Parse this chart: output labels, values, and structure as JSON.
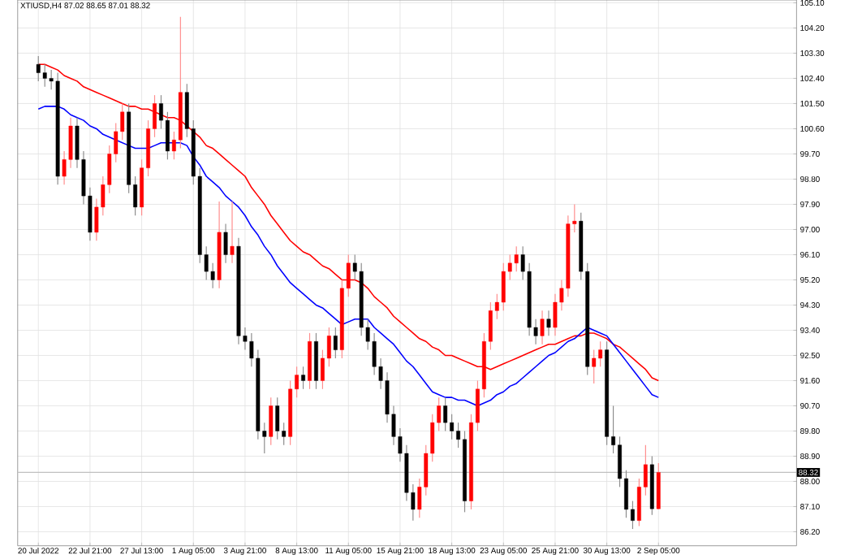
{
  "chart_data": {
    "type": "candlestick",
    "title": "XTIUSD,H4  87.02 88.65 87.01 88.32",
    "categories": [
      "20 Jul 2022",
      null,
      null,
      null,
      null,
      null,
      null,
      null,
      "22 Jul 21:00",
      null,
      null,
      null,
      null,
      null,
      null,
      null,
      "27 Jul 13:00",
      null,
      null,
      null,
      null,
      null,
      null,
      null,
      "1 Aug 05:00",
      null,
      null,
      null,
      null,
      null,
      null,
      null,
      "3 Aug 21:00",
      null,
      null,
      null,
      null,
      null,
      null,
      null,
      "8 Aug 13:00",
      null,
      null,
      null,
      null,
      null,
      null,
      null,
      "11 Aug 05:00",
      null,
      null,
      null,
      null,
      null,
      null,
      null,
      "15 Aug 21:00",
      null,
      null,
      null,
      null,
      null,
      null,
      null,
      "18 Aug 13:00",
      null,
      null,
      null,
      null,
      null,
      null,
      null,
      "23 Aug 05:00",
      null,
      null,
      null,
      null,
      null,
      null,
      null,
      "25 Aug 21:00",
      null,
      null,
      null,
      null,
      null,
      null,
      null,
      "30 Aug 13:00",
      null,
      null,
      null,
      null,
      null,
      null,
      null,
      "2 Sep 05:00"
    ],
    "ohlc": [
      [
        102.9,
        103.2,
        102.3,
        102.6
      ],
      [
        102.6,
        102.9,
        102.1,
        102.4
      ],
      [
        102.4,
        102.7,
        102.0,
        102.3
      ],
      [
        102.3,
        102.6,
        98.6,
        98.9
      ],
      [
        98.9,
        99.8,
        98.6,
        99.5
      ],
      [
        99.5,
        101.0,
        99.2,
        100.7
      ],
      [
        100.7,
        101.0,
        99.2,
        99.5
      ],
      [
        99.5,
        99.8,
        97.9,
        98.2
      ],
      [
        98.2,
        98.5,
        96.6,
        96.9
      ],
      [
        96.9,
        98.1,
        96.6,
        97.8
      ],
      [
        97.8,
        98.9,
        97.5,
        98.6
      ],
      [
        98.6,
        100.0,
        98.3,
        99.7
      ],
      [
        99.7,
        100.8,
        99.4,
        100.5
      ],
      [
        100.5,
        101.5,
        100.2,
        101.2
      ],
      [
        101.2,
        101.5,
        98.3,
        98.6
      ],
      [
        98.6,
        98.9,
        97.5,
        97.8
      ],
      [
        97.8,
        99.5,
        97.5,
        99.2
      ],
      [
        99.2,
        100.9,
        98.9,
        100.6
      ],
      [
        100.6,
        101.8,
        100.3,
        101.5
      ],
      [
        101.5,
        101.8,
        100.6,
        100.9
      ],
      [
        100.9,
        101.2,
        99.5,
        99.8
      ],
      [
        99.8,
        100.5,
        99.5,
        100.2
      ],
      [
        100.2,
        104.6,
        99.9,
        101.9
      ],
      [
        101.9,
        102.2,
        100.3,
        100.6
      ],
      [
        100.6,
        100.9,
        98.6,
        98.9
      ],
      [
        98.9,
        99.2,
        95.8,
        96.1
      ],
      [
        96.1,
        96.4,
        95.2,
        95.5
      ],
      [
        95.5,
        95.8,
        94.9,
        95.2
      ],
      [
        95.2,
        98.0,
        94.9,
        96.9
      ],
      [
        96.9,
        97.2,
        95.8,
        96.1
      ],
      [
        96.1,
        98.0,
        95.8,
        96.4
      ],
      [
        96.4,
        96.7,
        92.9,
        93.2
      ],
      [
        93.2,
        93.5,
        92.7,
        93.0
      ],
      [
        93.0,
        93.3,
        92.1,
        92.4
      ],
      [
        92.4,
        92.7,
        89.5,
        89.8
      ],
      [
        89.8,
        90.1,
        89.0,
        89.6
      ],
      [
        89.6,
        91.0,
        89.3,
        90.7
      ],
      [
        90.7,
        91.0,
        89.5,
        89.8
      ],
      [
        89.8,
        90.1,
        89.3,
        89.6
      ],
      [
        89.6,
        91.6,
        89.3,
        91.3
      ],
      [
        91.3,
        92.1,
        91.0,
        91.8
      ],
      [
        91.8,
        92.1,
        91.3,
        91.6
      ],
      [
        91.6,
        93.3,
        91.3,
        93.0
      ],
      [
        93.0,
        93.3,
        91.3,
        91.6
      ],
      [
        91.6,
        92.7,
        91.3,
        92.4
      ],
      [
        92.4,
        93.5,
        92.1,
        93.2
      ],
      [
        93.2,
        93.5,
        92.4,
        92.7
      ],
      [
        92.7,
        95.2,
        92.4,
        94.9
      ],
      [
        94.9,
        96.1,
        94.6,
        95.8
      ],
      [
        95.8,
        96.1,
        95.2,
        95.5
      ],
      [
        95.5,
        95.8,
        93.2,
        93.5
      ],
      [
        93.5,
        93.8,
        92.7,
        93.0
      ],
      [
        93.0,
        93.3,
        91.8,
        92.1
      ],
      [
        92.1,
        92.4,
        91.3,
        91.6
      ],
      [
        91.6,
        91.9,
        90.1,
        90.4
      ],
      [
        90.4,
        90.7,
        89.3,
        89.6
      ],
      [
        89.6,
        89.9,
        88.7,
        89.0
      ],
      [
        89.0,
        89.3,
        87.3,
        87.6
      ],
      [
        87.6,
        87.9,
        86.6,
        87.0
      ],
      [
        87.0,
        88.1,
        86.7,
        87.8
      ],
      [
        87.8,
        89.3,
        87.5,
        89.0
      ],
      [
        89.0,
        90.4,
        88.7,
        90.1
      ],
      [
        90.1,
        91.0,
        89.8,
        90.7
      ],
      [
        90.7,
        91.0,
        89.8,
        90.1
      ],
      [
        90.1,
        90.4,
        89.5,
        89.8
      ],
      [
        89.8,
        90.1,
        89.2,
        89.5
      ],
      [
        89.5,
        89.8,
        86.9,
        87.3
      ],
      [
        87.3,
        90.4,
        87.0,
        90.1
      ],
      [
        90.1,
        91.6,
        89.8,
        91.3
      ],
      [
        91.3,
        93.3,
        91.0,
        93.0
      ],
      [
        93.0,
        94.4,
        92.7,
        94.1
      ],
      [
        94.1,
        94.7,
        93.8,
        94.4
      ],
      [
        94.4,
        95.8,
        94.1,
        95.5
      ],
      [
        95.5,
        96.1,
        95.2,
        95.8
      ],
      [
        95.8,
        96.4,
        95.5,
        96.1
      ],
      [
        96.1,
        96.4,
        95.2,
        95.5
      ],
      [
        95.5,
        95.8,
        93.2,
        93.5
      ],
      [
        93.5,
        93.8,
        92.9,
        93.2
      ],
      [
        93.2,
        94.1,
        92.9,
        93.8
      ],
      [
        93.8,
        94.1,
        93.2,
        93.5
      ],
      [
        93.5,
        94.7,
        93.2,
        94.4
      ],
      [
        94.4,
        95.2,
        94.1,
        94.9
      ],
      [
        94.9,
        97.5,
        94.6,
        97.2
      ],
      [
        97.2,
        97.9,
        96.9,
        97.3
      ],
      [
        97.3,
        97.6,
        95.2,
        95.5
      ],
      [
        95.5,
        95.8,
        91.8,
        92.1
      ],
      [
        92.1,
        92.7,
        91.5,
        92.4
      ],
      [
        92.4,
        93.0,
        92.1,
        92.7
      ],
      [
        92.7,
        93.0,
        89.3,
        89.6
      ],
      [
        89.6,
        90.7,
        89.0,
        89.3
      ],
      [
        89.3,
        89.6,
        87.8,
        88.1
      ],
      [
        88.1,
        88.4,
        86.7,
        87.0
      ],
      [
        87.0,
        87.3,
        86.3,
        86.6
      ],
      [
        86.6,
        88.1,
        86.4,
        87.8
      ],
      [
        87.8,
        89.3,
        87.5,
        88.6
      ],
      [
        88.6,
        88.9,
        86.8,
        87.02
      ],
      [
        87.02,
        88.65,
        87.01,
        88.32
      ]
    ],
    "colors": [
      "#000000",
      "#000000",
      "#000000",
      "#000000",
      "#ff0000",
      "#ff0000",
      "#000000",
      "#000000",
      "#000000",
      "#ff0000",
      "#ff0000",
      "#ff0000",
      "#ff0000",
      "#ff0000",
      "#000000",
      "#000000",
      "#ff0000",
      "#ff0000",
      "#ff0000",
      "#000000",
      "#000000",
      "#ff0000",
      "#ff0000",
      "#000000",
      "#000000",
      "#000000",
      "#000000",
      "#000000",
      "#ff0000",
      "#000000",
      "#ff0000",
      "#000000",
      "#000000",
      "#000000",
      "#000000",
      "#000000",
      "#ff0000",
      "#000000",
      "#000000",
      "#ff0000",
      "#ff0000",
      "#000000",
      "#ff0000",
      "#000000",
      "#ff0000",
      "#ff0000",
      "#000000",
      "#ff0000",
      "#ff0000",
      "#000000",
      "#000000",
      "#000000",
      "#000000",
      "#000000",
      "#000000",
      "#000000",
      "#000000",
      "#000000",
      "#000000",
      "#ff0000",
      "#ff0000",
      "#ff0000",
      "#ff0000",
      "#000000",
      "#000000",
      "#000000",
      "#000000",
      "#ff0000",
      "#ff0000",
      "#ff0000",
      "#ff0000",
      "#ff0000",
      "#ff0000",
      "#ff0000",
      "#ff0000",
      "#000000",
      "#000000",
      "#000000",
      "#ff0000",
      "#000000",
      "#ff0000",
      "#ff0000",
      "#ff0000",
      "#ff0000",
      "#000000",
      "#000000",
      "#ff0000",
      "#ff0000",
      "#000000",
      "#000000",
      "#000000",
      "#000000",
      "#000000",
      "#ff0000",
      "#ff0000",
      "#000000",
      "#ff0000"
    ],
    "series": [
      {
        "type": "line",
        "color": "#ff0000",
        "values": [
          102.9,
          102.9,
          102.8,
          102.7,
          102.5,
          102.4,
          102.3,
          102.1,
          102.0,
          101.9,
          101.8,
          101.7,
          101.6,
          101.5,
          101.4,
          101.4,
          101.3,
          101.3,
          101.2,
          101.1,
          101.0,
          101.0,
          100.9,
          100.7,
          100.5,
          100.3,
          100.0,
          99.9,
          99.7,
          99.5,
          99.3,
          99.1,
          98.9,
          98.5,
          98.2,
          97.9,
          97.5,
          97.2,
          96.9,
          96.6,
          96.4,
          96.2,
          96.1,
          95.9,
          95.7,
          95.6,
          95.4,
          95.2,
          95.2,
          95.2,
          95.1,
          94.9,
          94.6,
          94.4,
          94.2,
          93.9,
          93.7,
          93.5,
          93.3,
          93.1,
          93.0,
          92.8,
          92.7,
          92.5,
          92.5,
          92.4,
          92.3,
          92.2,
          92.1,
          92.1,
          92.0,
          92.1,
          92.2,
          92.3,
          92.4,
          92.5,
          92.6,
          92.7,
          92.8,
          92.9,
          92.9,
          93.0,
          93.1,
          93.2,
          93.2,
          93.3,
          93.3,
          93.2,
          93.1,
          92.9,
          92.8,
          92.6,
          92.4,
          92.2,
          92.0,
          91.7,
          91.6
        ]
      },
      {
        "type": "line",
        "color": "#0000ff",
        "values": [
          101.3,
          101.4,
          101.4,
          101.4,
          101.3,
          101.1,
          101.0,
          100.9,
          100.7,
          100.6,
          100.4,
          100.3,
          100.2,
          100.1,
          100.0,
          99.9,
          99.9,
          99.9,
          100.0,
          100.1,
          100.1,
          100.1,
          100.1,
          100.0,
          99.6,
          99.3,
          98.9,
          98.7,
          98.5,
          98.2,
          98.0,
          97.8,
          97.5,
          97.1,
          96.8,
          96.4,
          96.1,
          95.7,
          95.4,
          95.1,
          94.9,
          94.7,
          94.5,
          94.3,
          94.2,
          94.0,
          93.8,
          93.6,
          93.7,
          93.8,
          93.8,
          93.8,
          93.5,
          93.3,
          93.1,
          92.9,
          92.6,
          92.3,
          92.1,
          91.8,
          91.5,
          91.2,
          91.1,
          91.0,
          91.0,
          90.9,
          90.9,
          90.8,
          90.7,
          90.8,
          90.9,
          91.1,
          91.2,
          91.4,
          91.5,
          91.7,
          91.9,
          92.1,
          92.3,
          92.5,
          92.6,
          92.8,
          93.0,
          93.1,
          93.3,
          93.5,
          93.4,
          93.3,
          93.2,
          92.9,
          92.6,
          92.3,
          92.0,
          91.7,
          91.4,
          91.1,
          91.0
        ]
      }
    ],
    "ylim": [
      85.7,
      105.2
    ],
    "yticks": [
      {
        "value": 86.2,
        "label": "86.20"
      },
      {
        "value": 87.1,
        "label": "87.10"
      },
      {
        "value": 88.0,
        "label": "88.00"
      },
      {
        "value": 88.9,
        "label": "88.90"
      },
      {
        "value": 89.8,
        "label": "89.80"
      },
      {
        "value": 90.7,
        "label": "90.70"
      },
      {
        "value": 91.6,
        "label": "91.60"
      },
      {
        "value": 92.5,
        "label": "92.50"
      },
      {
        "value": 93.4,
        "label": "93.40"
      },
      {
        "value": 94.3,
        "label": "94.30"
      },
      {
        "value": 95.2,
        "label": "95.20"
      },
      {
        "value": 96.1,
        "label": "96.10"
      },
      {
        "value": 97.0,
        "label": "97.00"
      },
      {
        "value": 97.9,
        "label": "97.90"
      },
      {
        "value": 98.8,
        "label": "98.80"
      },
      {
        "value": 99.7,
        "label": "99.70"
      },
      {
        "value": 100.6,
        "label": "100.60"
      },
      {
        "value": 101.5,
        "label": "101.50"
      },
      {
        "value": 102.4,
        "label": "102.40"
      },
      {
        "value": 103.3,
        "label": "103.30"
      },
      {
        "value": 104.2,
        "label": "104.20"
      },
      {
        "value": 105.1,
        "label": "105.10"
      }
    ],
    "grid": true,
    "ref_lines": [
      {
        "axis": "y",
        "value": 88.32,
        "label": "88.32",
        "color": "#c0c0c0"
      }
    ]
  }
}
